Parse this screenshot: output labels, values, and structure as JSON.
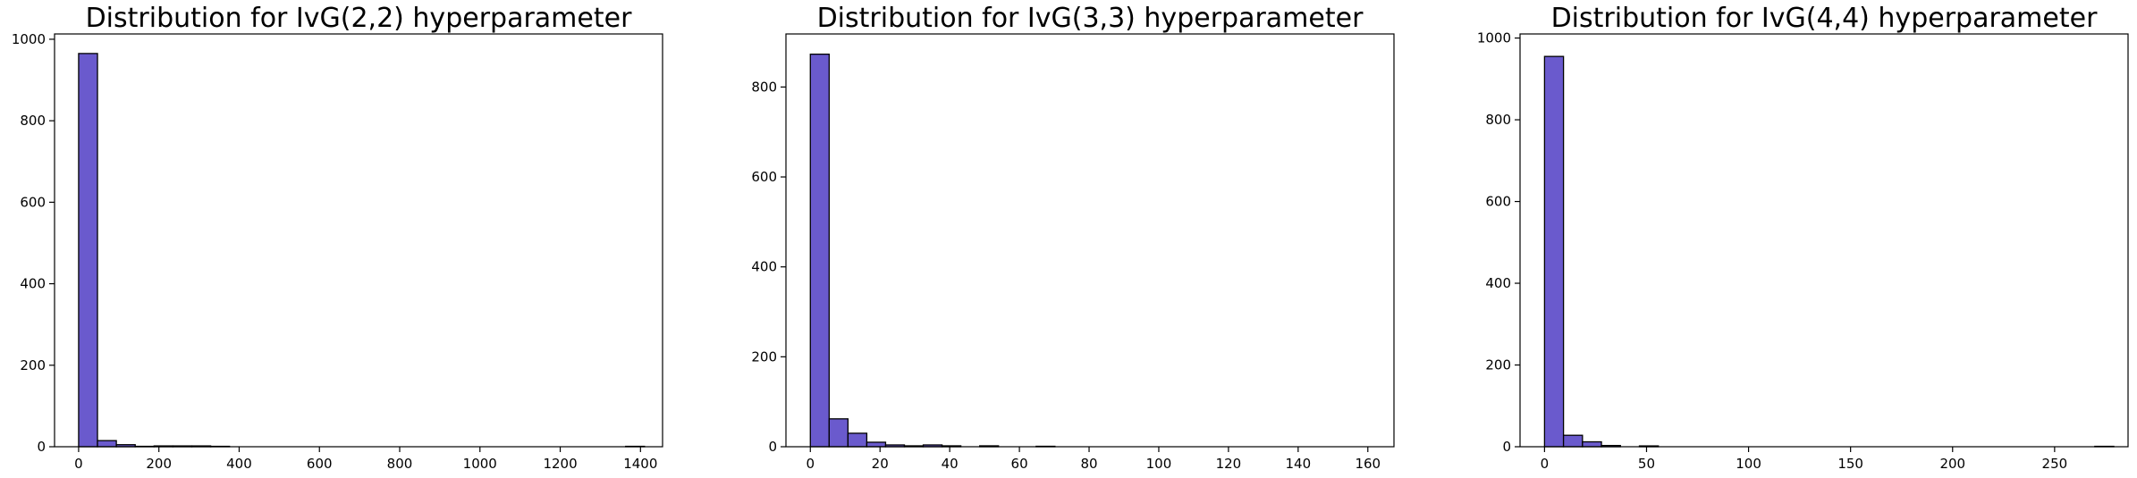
{
  "chart_data": [
    {
      "type": "histogram",
      "title": "Distribution for IvG(2,2) hyperparameter",
      "color": "#6a5acd",
      "edgecolor": "#000000",
      "bins": [
        0,
        47,
        94,
        141,
        188,
        235,
        282,
        329,
        376,
        423,
        470,
        517,
        564,
        611,
        658,
        705,
        752,
        799,
        846,
        893,
        940,
        987,
        1034,
        1081,
        1128,
        1175,
        1222,
        1269,
        1316,
        1363,
        1410
      ],
      "values": [
        965,
        15,
        5,
        1,
        2,
        2,
        2,
        1,
        0,
        0,
        0,
        0,
        0,
        0,
        0,
        0,
        0,
        0,
        0,
        0,
        0,
        0,
        0,
        0,
        0,
        0,
        0,
        0,
        0,
        1
      ],
      "xlim": [
        -60,
        1455
      ],
      "ylim": [
        0,
        1013
      ],
      "xticks": [
        0,
        200,
        400,
        600,
        800,
        1000,
        1200,
        1400
      ],
      "yticks": [
        0,
        200,
        400,
        600,
        800,
        1000
      ]
    },
    {
      "type": "histogram",
      "title": "Distribution for IvG(3,3) hyperparameter",
      "color": "#6a5acd",
      "edgecolor": "#000000",
      "bins": [
        0,
        5.4,
        10.8,
        16.2,
        21.6,
        27,
        32.4,
        37.8,
        43.2,
        48.6,
        54,
        59.4,
        64.8,
        70.2,
        75.6,
        81,
        86.4,
        91.8,
        97.2,
        102.6,
        108,
        113.4,
        118.8,
        124.2,
        129.6,
        135,
        140.4,
        145.8,
        151.2,
        156.6,
        162
      ],
      "values": [
        873,
        62,
        30,
        10,
        4,
        2,
        4,
        2,
        0,
        2,
        0,
        0,
        1,
        0,
        0,
        0,
        0,
        0,
        0,
        0,
        0,
        0,
        0,
        0,
        0,
        0,
        0,
        0,
        0,
        0
      ],
      "xlim": [
        -7,
        167.5
      ],
      "ylim": [
        0,
        918
      ],
      "xticks": [
        0,
        20,
        40,
        60,
        80,
        100,
        120,
        140,
        160
      ],
      "yticks": [
        0,
        200,
        400,
        600,
        800
      ]
    },
    {
      "type": "histogram",
      "title": "Distribution for IvG(4,4) hyperparameter",
      "color": "#6a5acd",
      "edgecolor": "#000000",
      "bins": [
        0,
        9.3,
        18.6,
        27.9,
        37.2,
        46.5,
        55.8,
        65.1,
        74.4,
        83.7,
        93,
        102.3,
        111.6,
        120.9,
        130.2,
        139.5,
        148.8,
        158.1,
        167.4,
        176.7,
        186,
        195.3,
        204.6,
        213.9,
        223.2,
        232.5,
        241.8,
        251.1,
        260.4,
        269.7,
        279
      ],
      "values": [
        955,
        28,
        12,
        3,
        0,
        2,
        0,
        0,
        0,
        0,
        0,
        0,
        0,
        0,
        0,
        0,
        0,
        0,
        0,
        0,
        0,
        0,
        0,
        0,
        0,
        0,
        0,
        0,
        0,
        1
      ],
      "xlim": [
        -12,
        286
      ],
      "ylim": [
        0,
        1010
      ],
      "xticks": [
        0,
        50,
        100,
        150,
        200,
        250
      ],
      "yticks": [
        0,
        200,
        400,
        600,
        800,
        1000
      ]
    }
  ]
}
